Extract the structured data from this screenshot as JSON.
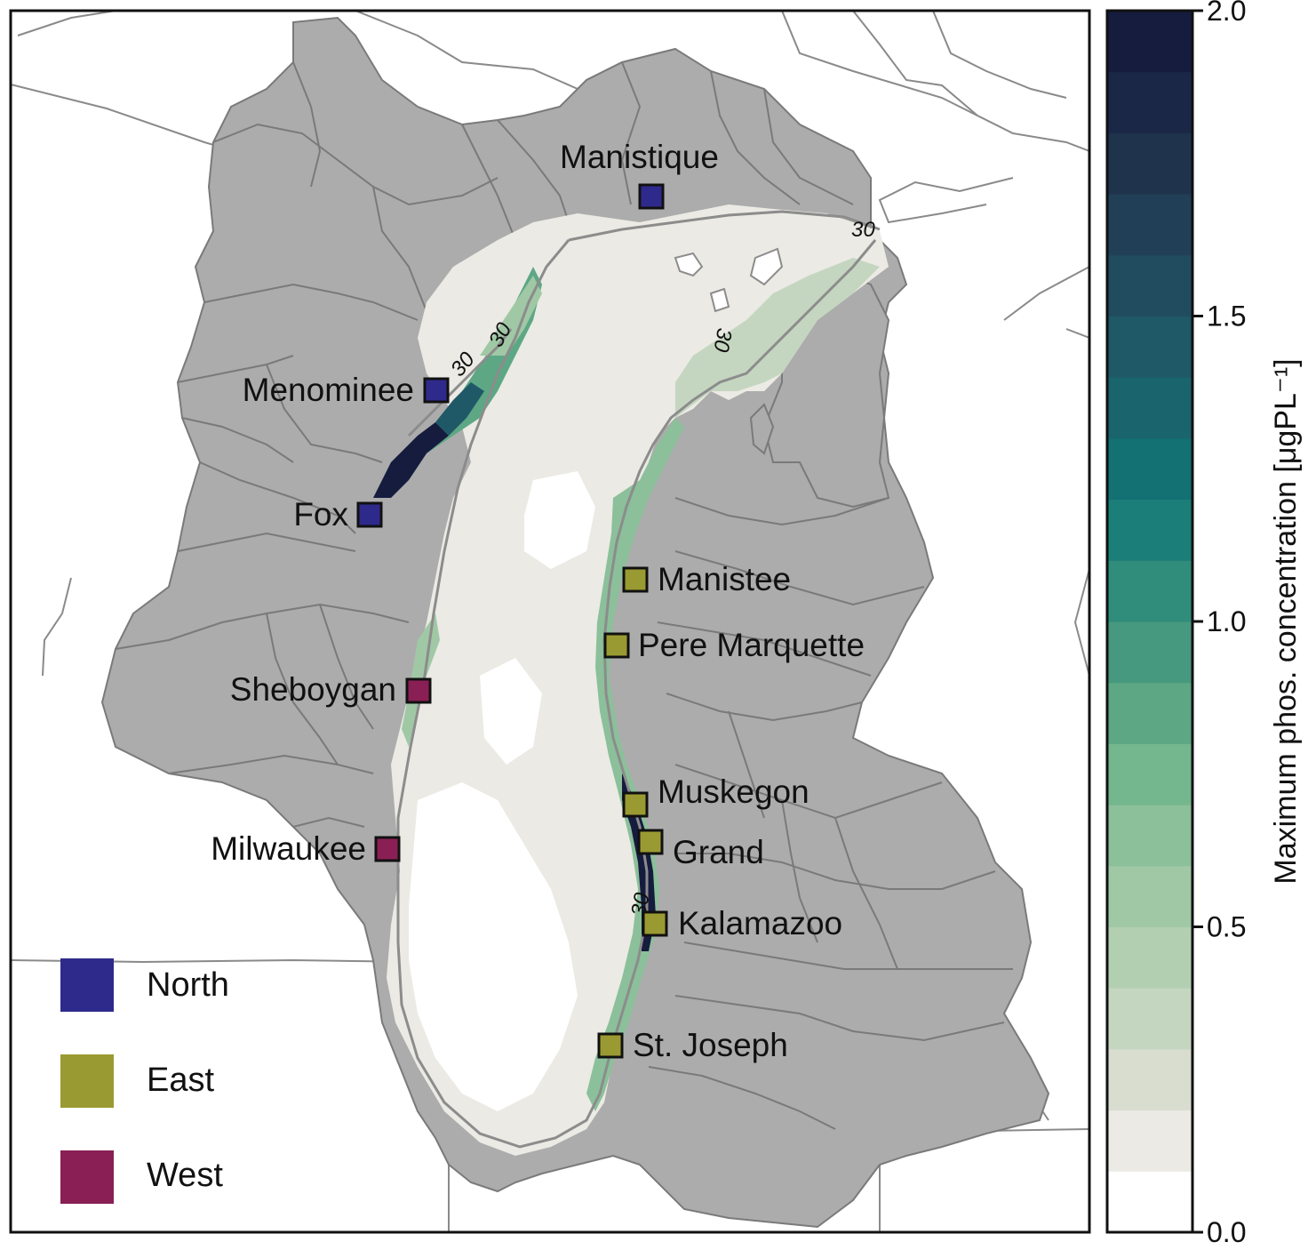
{
  "map": {
    "colors": {
      "land": "#acacac",
      "boundary": "#7a7a7a",
      "lake_base": "#ebeae4",
      "contour": "#8c8c8c"
    },
    "contour_value": "30",
    "rivers": [
      {
        "name": "Manistique",
        "group": "North"
      },
      {
        "name": "Menominee",
        "group": "North"
      },
      {
        "name": "Fox",
        "group": "North"
      },
      {
        "name": "Manistee",
        "group": "East"
      },
      {
        "name": "Pere Marquette",
        "group": "East"
      },
      {
        "name": "Sheboygan",
        "group": "West"
      },
      {
        "name": "Muskegon",
        "group": "East"
      },
      {
        "name": "Grand",
        "group": "East"
      },
      {
        "name": "Milwaukee",
        "group": "West"
      },
      {
        "name": "Kalamazoo",
        "group": "East"
      },
      {
        "name": "St. Joseph",
        "group": "East"
      }
    ]
  },
  "legend": {
    "items": [
      {
        "label": "North",
        "color": "#2e2a8c"
      },
      {
        "label": "East",
        "color": "#9a9a32"
      },
      {
        "label": "West",
        "color": "#8a1f55"
      }
    ]
  },
  "colorbar": {
    "label": "Maximum phos. concentration [μgPL⁻¹]",
    "min": 0.0,
    "max": 2.0,
    "ticks": [
      "0.0",
      "0.5",
      "1.0",
      "1.5",
      "2.0"
    ],
    "levels": [
      "#ffffff",
      "#ebeae4",
      "#d9ddd0",
      "#c5d6c0",
      "#b3cfb2",
      "#a0c8a5",
      "#8bc09a",
      "#74b68e",
      "#5da785",
      "#46997f",
      "#308c7b",
      "#1c7e78",
      "#137073",
      "#1a646e",
      "#1f5867",
      "#214c5f",
      "#213f56",
      "#1f334d",
      "#1b2746",
      "#161c3e"
    ]
  }
}
